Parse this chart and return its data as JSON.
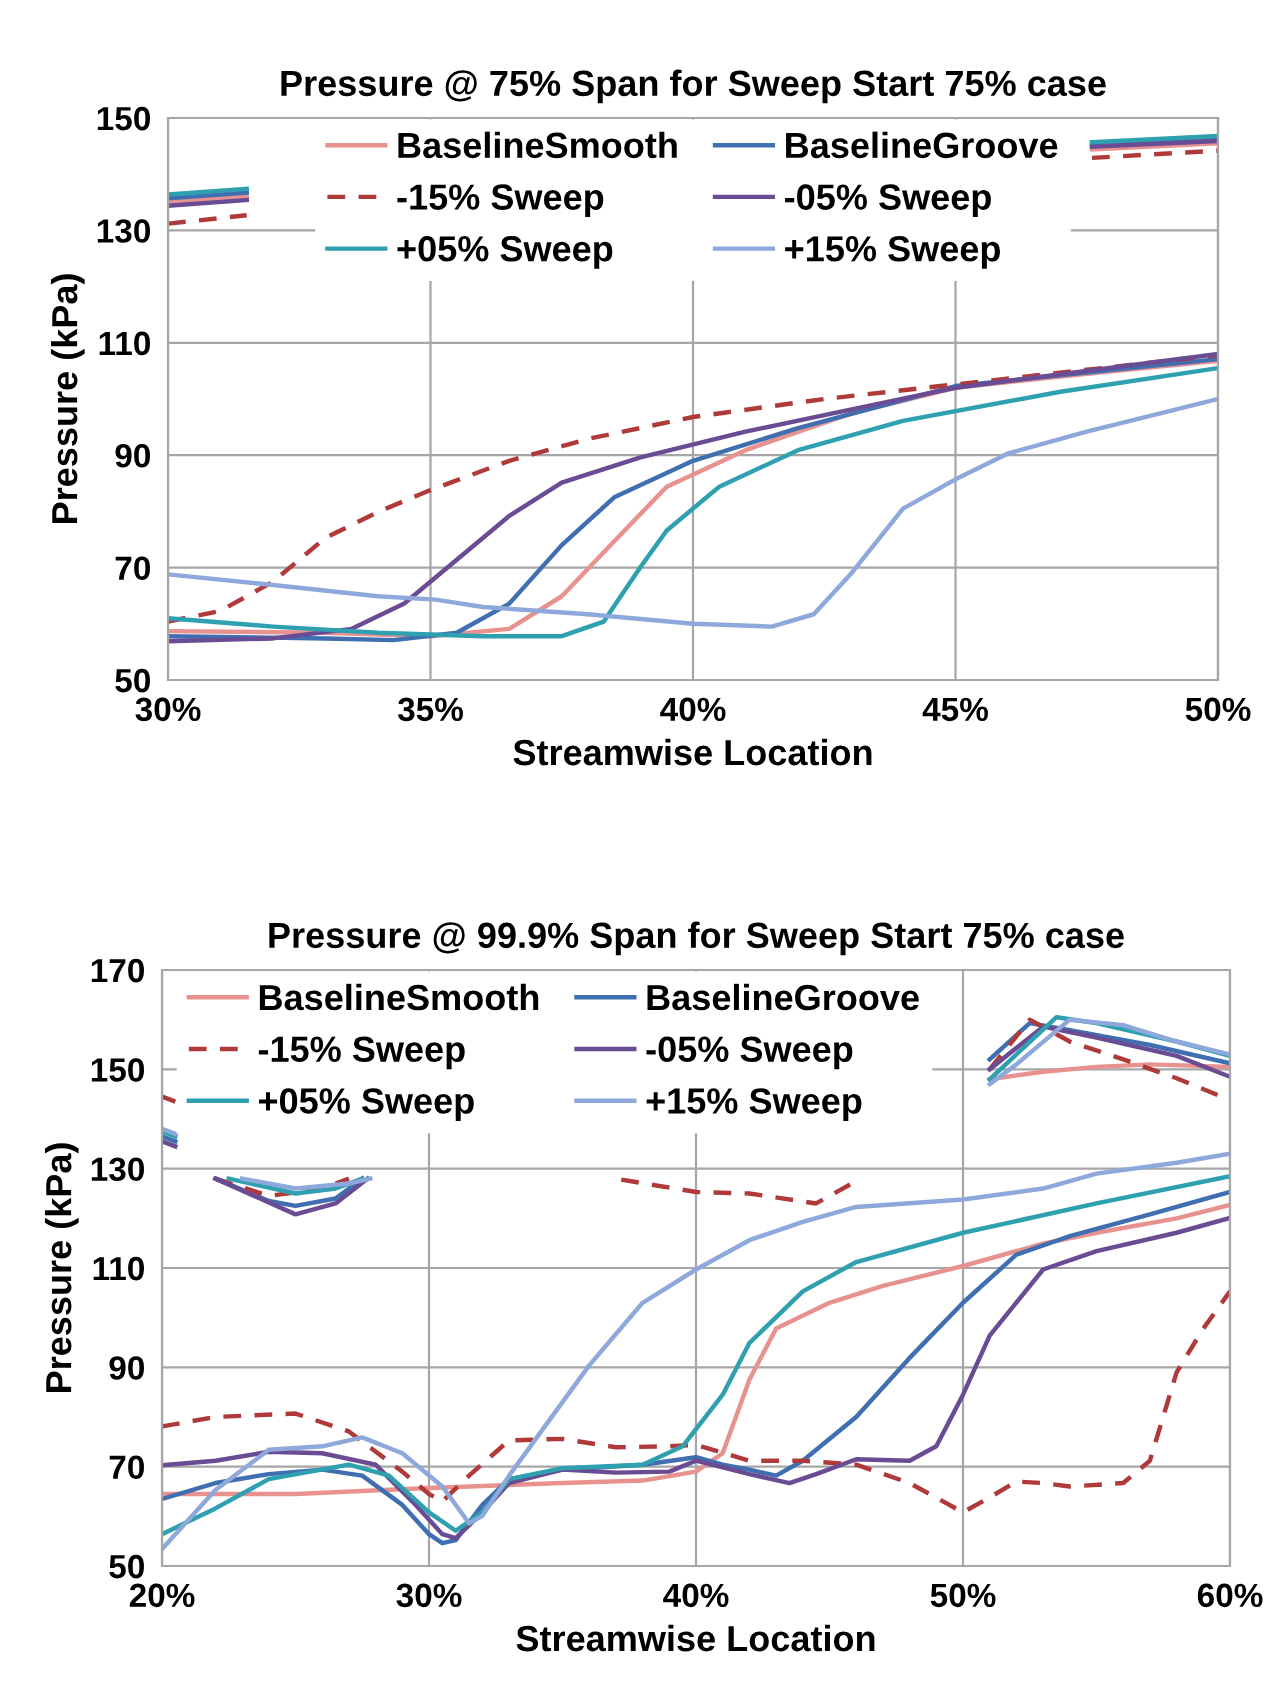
{
  "chart_data": [
    {
      "type": "line",
      "title": "Pressure @ 75% Span for Sweep Start 75% case",
      "xlabel": "Streamwise Location",
      "ylabel": "Pressure (kPa)",
      "xlim": [
        30,
        50
      ],
      "ylim": [
        50,
        150
      ],
      "xticks": [
        {
          "value": 30,
          "label": "30%"
        },
        {
          "value": 35,
          "label": "35%"
        },
        {
          "value": 40,
          "label": "40%"
        },
        {
          "value": 45,
          "label": "45%"
        },
        {
          "value": 50,
          "label": "50%"
        }
      ],
      "yticks": [
        50,
        70,
        90,
        110,
        130,
        150
      ],
      "grid": true,
      "legend": "top",
      "line_style": "solid",
      "marker": "none",
      "series": [
        {
          "name": "BaselineSmooth",
          "color": "#e8928f",
          "x": [
            30,
            33,
            35,
            36.5,
            37.5,
            38.5,
            39.5,
            41,
            43,
            45,
            47.5,
            50,
            null,
            47.6,
            50,
            null,
            30,
            31.5
          ],
          "values": [
            58.7,
            58.4,
            57.8,
            59.1,
            64.9,
            74.7,
            84.4,
            90.9,
            97.4,
            102,
            104.5,
            106.8,
            null,
            144.4,
            145.5,
            null,
            135,
            136
          ]
        },
        {
          "name": "BaselineGroove",
          "color": "#3f6fb0",
          "x": [
            30,
            33,
            34.3,
            35.5,
            36.5,
            37.5,
            38.5,
            40,
            42,
            45,
            50,
            null,
            47.6,
            50,
            null,
            30,
            31.5
          ],
          "values": [
            57.8,
            57.4,
            57.1,
            58.4,
            63.6,
            74,
            82.5,
            89,
            94.8,
            102.3,
            107.1,
            null,
            145.2,
            146.4,
            null,
            135.7,
            136.7
          ]
        },
        {
          "name": "-15% Sweep",
          "color": "#b03a3a",
          "line_style": "dashed",
          "x": [
            30,
            31,
            32,
            33,
            34,
            35,
            36.5,
            38,
            40,
            42.5,
            45,
            47.5,
            50,
            null,
            47.6,
            50,
            null,
            30,
            31.5
          ],
          "values": [
            60.4,
            62.3,
            67.5,
            75.3,
            79.9,
            83.8,
            89,
            92.9,
            96.8,
            100,
            102.6,
            105.2,
            107.8,
            null,
            142.9,
            144.2,
            null,
            131.2,
            132.7
          ]
        },
        {
          "name": "-05% Sweep",
          "color": "#6a4c94",
          "x": [
            30,
            32,
            33.5,
            34.5,
            35.5,
            36.5,
            37.5,
            39,
            41,
            43,
            45,
            50,
            null,
            47.6,
            50,
            null,
            30,
            31.5
          ],
          "values": [
            56.9,
            57.4,
            59.1,
            63.6,
            71.4,
            79.2,
            85.1,
            89.6,
            94.2,
            98.1,
            102,
            108,
            null,
            144.9,
            145.9,
            null,
            134.4,
            135.4
          ]
        },
        {
          "name": "+05% Sweep",
          "color": "#2ea0b0",
          "x": [
            30,
            32,
            34,
            36,
            37.5,
            38.3,
            39,
            39.5,
            40.5,
            42,
            44,
            47,
            50,
            null,
            47.6,
            50,
            null,
            30,
            31.5
          ],
          "values": [
            61,
            59.5,
            58.4,
            57.8,
            57.8,
            60.4,
            70.1,
            76.6,
            84.4,
            90.9,
            96.1,
            101.3,
            105.5,
            null,
            145.7,
            146.8,
            null,
            136.4,
            137.4
          ]
        },
        {
          "name": "+15% Sweep",
          "color": "#8fa8dc",
          "x": [
            30,
            32,
            34,
            35.1,
            36,
            38,
            40,
            41.5,
            42.3,
            43,
            44,
            45,
            46,
            47.5,
            50
          ],
          "values": [
            68.8,
            66.9,
            64.9,
            64.3,
            63,
            61.7,
            60,
            59.5,
            61.7,
            68.8,
            80.5,
            85.7,
            90.3,
            94.2,
            100
          ]
        }
      ]
    },
    {
      "type": "line",
      "title": "Pressure @ 99.9% Span for Sweep Start 75% case",
      "xlabel": "Streamwise Location",
      "ylabel": "Pressure (kPa)",
      "xlim": [
        20,
        60
      ],
      "ylim": [
        50,
        170
      ],
      "xticks": [
        {
          "value": 20,
          "label": "20%"
        },
        {
          "value": 30,
          "label": "30%"
        },
        {
          "value": 40,
          "label": "40%"
        },
        {
          "value": 50,
          "label": "50%"
        },
        {
          "value": 60,
          "label": "60%"
        }
      ],
      "yticks": [
        50,
        70,
        90,
        110,
        130,
        150,
        170
      ],
      "grid": true,
      "legend": "top left",
      "line_style": "solid",
      "marker": "none",
      "series": [
        {
          "name": "BaselineSmooth",
          "color": "#e8928f",
          "x": [
            20,
            25,
            30,
            35,
            38,
            40,
            41,
            42,
            43,
            45,
            47,
            50,
            53,
            55,
            58,
            60,
            null,
            51,
            53,
            55,
            57,
            60
          ],
          "values": [
            64.5,
            64.5,
            65.7,
            66.7,
            67.2,
            69,
            72.7,
            87.5,
            97.8,
            103,
            106.4,
            110.4,
            114.9,
            117.1,
            120,
            122.7,
            null,
            148,
            149.5,
            150.5,
            151,
            150.5
          ]
        },
        {
          "name": "BaselineGroove",
          "color": "#3f6fb0",
          "x": [
            20,
            22,
            24,
            26,
            27.5,
            29,
            30,
            30.5,
            31,
            32,
            33,
            35,
            38,
            40,
            41,
            42,
            43,
            44,
            46,
            48,
            50,
            52,
            54,
            57,
            60,
            null,
            51,
            52.5,
            54,
            57,
            60,
            null,
            20,
            20.5,
            null,
            22,
            24,
            25,
            26.5,
            27.5
          ],
          "values": [
            63.5,
            66.7,
            68.5,
            69.4,
            68.2,
            62.3,
            56.4,
            54.6,
            55.2,
            62.3,
            67.5,
            69.4,
            70.4,
            71.9,
            70.4,
            69.4,
            68.2,
            71.2,
            80,
            91.9,
            103,
            112.7,
            116.4,
            120.8,
            125.3,
            null,
            152,
            159.3,
            157.9,
            154.9,
            151.2,
            null,
            136.5,
            135.5,
            null,
            128,
            123.5,
            122.5,
            124,
            128
          ]
        },
        {
          "name": "-15% Sweep",
          "color": "#b03a3a",
          "line_style": "dashed",
          "x": [
            20,
            22,
            25,
            27,
            29,
            30,
            30.5,
            31.5,
            33,
            35,
            37,
            39,
            40,
            42,
            44,
            46,
            48,
            50,
            51,
            52,
            53,
            54,
            56,
            57,
            58,
            59,
            60,
            null,
            51,
            52.5,
            54,
            56,
            58,
            60,
            null,
            20,
            20.5,
            null,
            22,
            24,
            26,
            27,
            null,
            37.2,
            40,
            42,
            44.5,
            46
          ],
          "values": [
            78.1,
            80,
            80.7,
            77.1,
            69,
            64.5,
            63,
            68.2,
            75.3,
            75.6,
            73.9,
            74.1,
            74.4,
            71.2,
            71.2,
            70.4,
            66.7,
            60.8,
            63.8,
            67,
            66.7,
            66,
            66.7,
            71.2,
            89,
            97.8,
            105.3,
            null,
            150,
            160,
            155.6,
            152,
            148.2,
            143.8,
            null,
            144.5,
            143.5,
            null,
            128,
            124.5,
            126,
            128,
            null,
            127.8,
            125.3,
            125,
            123,
            127.5
          ]
        },
        {
          "name": "-05% Sweep",
          "color": "#6a4c94",
          "x": [
            20,
            22,
            24,
            26,
            28,
            29.5,
            30.5,
            31,
            32,
            33,
            35,
            37,
            39,
            40,
            42,
            43.5,
            44.5,
            46,
            48,
            49,
            50,
            51,
            53,
            55,
            58,
            60,
            null,
            51,
            53,
            55,
            58,
            60,
            null,
            20,
            20.5,
            null,
            22,
            25,
            26.5,
            27.7
          ],
          "values": [
            70.3,
            71.2,
            73,
            72.7,
            70.4,
            62.3,
            56.4,
            55.6,
            60.8,
            66.7,
            69.4,
            68.8,
            69,
            71.2,
            68.5,
            66.7,
            68.5,
            71.5,
            71.2,
            74.1,
            84.5,
            96.4,
            109.7,
            113.4,
            117.1,
            120.1,
            null,
            150,
            158.6,
            156.4,
            152.7,
            148.5,
            null,
            135.5,
            134.5,
            null,
            128,
            120.8,
            123,
            128
          ]
        },
        {
          "name": "+05% Sweep",
          "color": "#2ea0b0",
          "x": [
            20,
            22,
            24,
            27,
            28.5,
            30,
            31,
            32,
            33,
            35,
            38,
            39.5,
            41,
            42,
            44,
            46,
            50,
            55,
            60,
            null,
            51,
            53.5,
            55,
            58,
            60,
            null,
            20,
            20.5,
            null,
            22.5,
            25,
            26.5,
            27.5
          ],
          "values": [
            56.4,
            61.6,
            67.5,
            70.4,
            68.2,
            60.8,
            57.1,
            60.8,
            67.5,
            69.7,
            70.4,
            74.1,
            84.5,
            94.9,
            105.3,
            111.2,
            117.1,
            123,
            128.5,
            null,
            148,
            160.5,
            159.3,
            155.6,
            152.7,
            null,
            137.5,
            136.5,
            null,
            128,
            125,
            126,
            128
          ]
        },
        {
          "name": "+15% Sweep",
          "color": "#8fa8dc",
          "x": [
            20,
            22,
            24,
            26,
            27.5,
            29,
            30.5,
            31.5,
            32,
            33,
            35,
            36,
            38,
            40,
            42,
            44,
            46,
            50,
            53,
            55,
            58,
            60,
            null,
            51,
            52,
            54,
            56,
            58,
            60,
            null,
            20,
            20.5,
            null,
            23,
            25,
            27,
            27.8
          ],
          "values": [
            53.4,
            65.3,
            73.4,
            74.1,
            75.9,
            72.7,
            66,
            58.6,
            60.1,
            68.2,
            83,
            90.4,
            103,
            109.7,
            115.6,
            119.3,
            122.3,
            123.8,
            126,
            129,
            131.2,
            133,
            null,
            147,
            151,
            160,
            158.9,
            155.6,
            153,
            null,
            138,
            137,
            null,
            128,
            126,
            127,
            128
          ]
        }
      ]
    }
  ]
}
